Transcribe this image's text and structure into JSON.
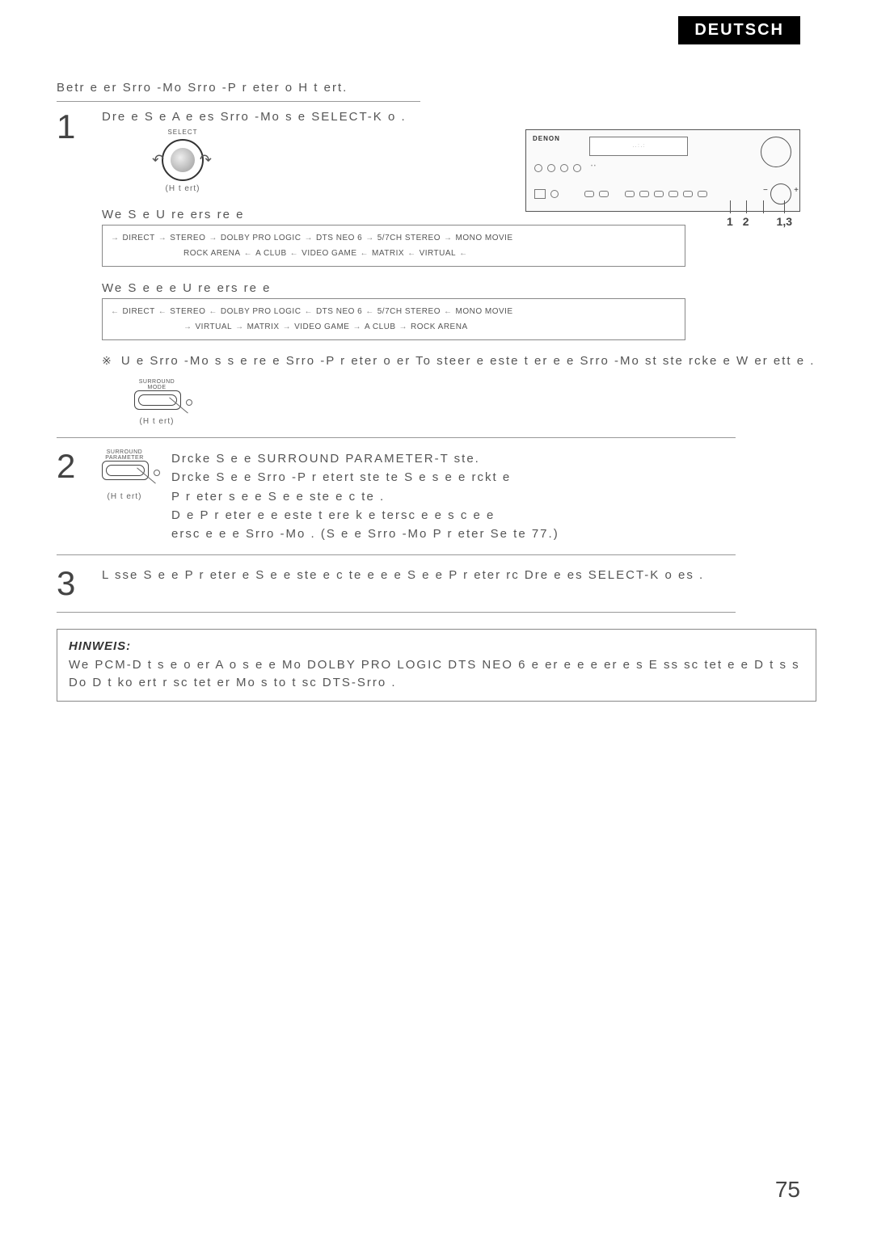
{
  "lang_tab": "DEUTSCH",
  "intro": "Betr e   er Srro   -Mo      Srro   -P r   eter o   H   t ert.",
  "step1": {
    "text": "Dre e   S e     A   e     es  Srro   -Mo s  e  SELECT-K o  .",
    "knob_top": "SELECT",
    "knob_caption": "(H   t  ert)"
  },
  "device": {
    "brand": "DENON",
    "display": ". . : . :",
    "callouts": [
      "1",
      "2",
      "1,3"
    ]
  },
  "seq_cw_title": "We    S e    U re  ers      re  e",
  "seq_cw_line1": [
    "DIRECT",
    "STEREO",
    "DOLBY PRO LOGIC",
    "DTS NEO 6",
    "5/7CH STEREO",
    "MONO MOVIE"
  ],
  "seq_cw_line2": [
    "VIRTUAL",
    "MATRIX",
    "VIDEO GAME",
    "A   CLUB",
    "ROCK ARENA"
  ],
  "seq_ccw_title": "We    S e  e  e   U re  ers      re  e",
  "seq_ccw_line1": [
    "DIRECT",
    "STEREO",
    "DOLBY PRO LOGIC",
    "DTS NEO 6",
    "5/7CH STEREO",
    "MONO MOVIE"
  ],
  "seq_ccw_line2": [
    "VIRTUAL",
    "MATRIX",
    "VIDEO GAME",
    "A   CLUB",
    "ROCK ARENA"
  ],
  "note_text": "U      e   Srro   -Mo s  s e      re       e  Srro   -P r    eter  o  er  To steer   e     este t er  e     e  Srro   -Mo st ste  rcke        e  W  er  ett  e .",
  "remote1_top": "SURROUND\nMODE",
  "remote1_caption": "(H   t  ert)",
  "step2": {
    "remote_top": "SURROUND\nPARAMETER",
    "remote_caption": "(H   t  ert)",
    "line1": "Drcke  S e   e SURROUND PARAMETER-T ste.",
    "line2": "Drcke   S e    e  Srro   -P r   etert ste       te    S e  s e   e rckt       e",
    "line3": "P r   eter s  e    e  S e e  ste e    c te .",
    "line4": "D e P r   eter    e e    este t  ere   k  e      tersc e e   s c    e   e",
    "line5": "ersc e e  e Srro   -Mo  . (S e e Srro   -Mo     P r   eter    Se te 77.)"
  },
  "step3": {
    "text": "L sse  S e  e  P r   eter  e  S e e  ste e    c te     e e      e  S e  e  P r   eter  rc   Dre  e    es SELECT-K o  es    ."
  },
  "hinweis": {
    "title": "HINWEIS:",
    "body": "We    PCM-D t s    e o er A   o s   e     e  Mo   DOLBY PRO LOGIC     DTS NEO 6   e er e  e  e  er e      s E     ss    sc  tet e  e  D t s       s   Do  D t    ko  ert r sc  tet  er Mo s  to   t sc    DTS-Srro   ."
  },
  "page_num": "75",
  "colors": {
    "bg": "#ffffff",
    "text": "#555555",
    "border": "#888888",
    "tab_bg": "#000000",
    "tab_fg": "#ffffff"
  }
}
